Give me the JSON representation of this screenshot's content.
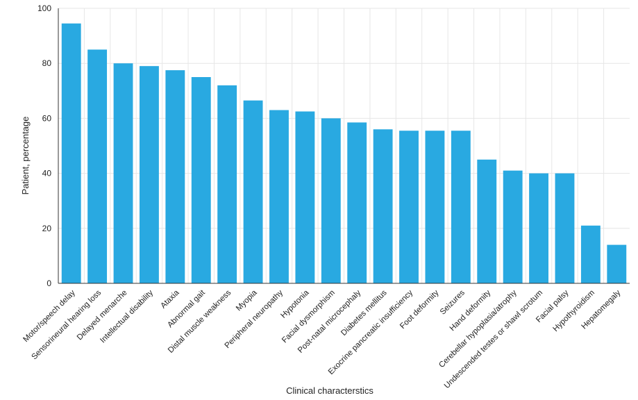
{
  "chart_data": {
    "type": "bar",
    "title": "",
    "xlabel": "Clinical characterstics",
    "ylabel": "Patient, percentage",
    "ylim": [
      0,
      100
    ],
    "yticks": [
      0,
      20,
      40,
      60,
      80,
      100
    ],
    "grid": true,
    "bar_color": "#29a9e1",
    "categories": [
      "Motor/speech delay",
      "Sensorineural hearing loss",
      "Delayed menarche",
      "Intellectual disability",
      "Ataxia",
      "Abnormal gait",
      "Distal muscle weakness",
      "Myopia",
      "Peripheral neuropathy",
      "Hypotonia",
      "Facial dysmorphism",
      "Post-natal microcephaly",
      "Diabetes mellitus",
      "Exocrine pancreatic insufficiency",
      "Foot deformity",
      "Seizures",
      "Hand deformity",
      "Cerebellar hypoplasia/atrophy",
      "Undescended testes or shawl scrotum",
      "Facial palsy",
      "Hypothyroidism",
      "Hepatomegaly"
    ],
    "values": [
      94.5,
      85,
      80,
      79,
      77.5,
      75,
      72,
      66.5,
      63,
      62.5,
      60,
      58.5,
      56,
      55.5,
      55.5,
      55.5,
      45,
      41,
      40,
      40,
      21,
      14
    ]
  }
}
